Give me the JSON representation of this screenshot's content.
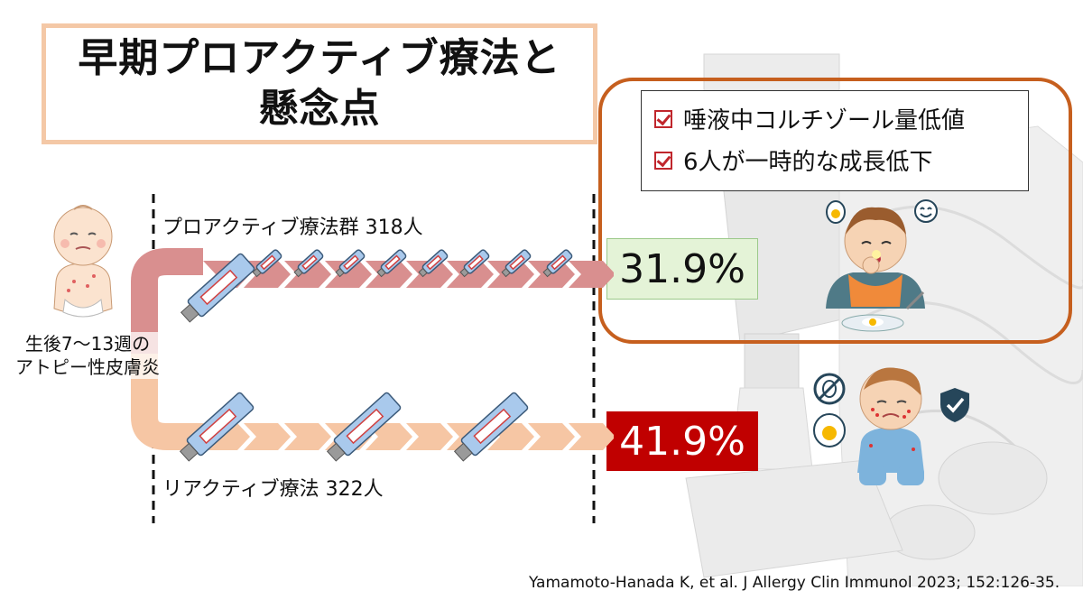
{
  "title": {
    "line1": "早期プロアクティブ療法と",
    "line2": "懸念点"
  },
  "concerns": [
    {
      "text": "唾液中コルチゾール量低値"
    },
    {
      "text": "6人が一時的な成長低下"
    }
  ],
  "onset": {
    "line1": "生後7～13週の",
    "line2": "アトピー性皮膚炎"
  },
  "groups": {
    "proactive": {
      "label": "プロアクティブ療法群 318人",
      "rate": "31.9%"
    },
    "reactive": {
      "label": "リアクティブ療法 322人",
      "rate": "41.9%"
    }
  },
  "citation": "Yamamoto-Hanada K, et al. J Allergy Clin Immunol 2023; 152:126-35.",
  "colors": {
    "proactive_arrow": "#d98f8f",
    "reactive_arrow": "#f6c6a4",
    "tube_blue": "#a9c9ec",
    "concern_border": "#c65f1e",
    "title_border": "#f4c8a6",
    "reactive_rate_bg": "#c00000",
    "proactive_rate_bg": "#e4f3d7"
  },
  "icons": [
    "check-box-icon",
    "ointment-tube-icon",
    "baby-icon",
    "child-eating-icon",
    "egg-icon",
    "shield-check-icon",
    "smiley-icon"
  ]
}
